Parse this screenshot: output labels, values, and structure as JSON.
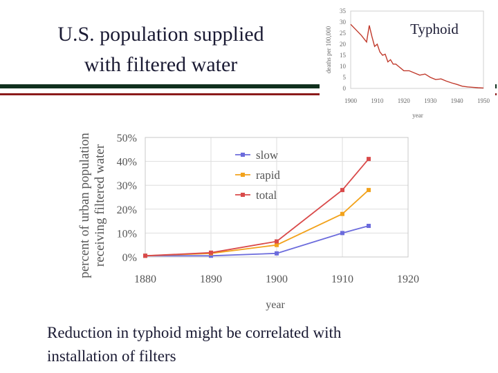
{
  "slide": {
    "title_line1": "U.S. population supplied",
    "title_line2": "with filtered water",
    "caption_line1": "Reduction in typhoid might be correlated with",
    "caption_line2": "installation of filters"
  },
  "chart_data": [
    {
      "type": "line",
      "title": "",
      "xlabel": "year",
      "ylabel_line1": "percent of urban population",
      "ylabel_line2": "receiving filtered water",
      "x_ticks": [
        "1880",
        "1890",
        "1900",
        "1910",
        "1920"
      ],
      "y_ticks": [
        "0%",
        "10%",
        "20%",
        "30%",
        "40%",
        "50%"
      ],
      "xlim": [
        1880,
        1920
      ],
      "ylim": [
        0,
        50
      ],
      "legend_position": "top-left",
      "series": [
        {
          "name": "slow",
          "color": "#6b6bdc",
          "x": [
            1880,
            1890,
            1900,
            1910,
            1914
          ],
          "values": [
            0.5,
            0.5,
            1.5,
            10,
            13
          ]
        },
        {
          "name": "rapid",
          "color": "#f2a21b",
          "x": [
            1880,
            1890,
            1900,
            1910,
            1914
          ],
          "values": [
            0.5,
            1.5,
            5,
            18,
            28
          ]
        },
        {
          "name": "total",
          "color": "#d94a4a",
          "x": [
            1880,
            1890,
            1900,
            1910,
            1914
          ],
          "values": [
            0.5,
            1.8,
            6.5,
            28,
            41
          ]
        }
      ]
    },
    {
      "type": "line",
      "title": "Typhoid",
      "xlabel": "year",
      "ylabel": "deaths per 100,000",
      "x_ticks": [
        "1900",
        "1910",
        "1920",
        "1930",
        "1940",
        "1950"
      ],
      "y_ticks": [
        "0",
        "5",
        "10",
        "15",
        "20",
        "25",
        "30",
        "35"
      ],
      "xlim": [
        1900,
        1950
      ],
      "ylim": [
        0,
        35
      ],
      "series": [
        {
          "color": "#c0392b",
          "x": [
            1900,
            1902,
            1904,
            1906,
            1907,
            1908,
            1909,
            1910,
            1911,
            1912,
            1913,
            1914,
            1915,
            1916,
            1917,
            1918,
            1919,
            1920,
            1922,
            1924,
            1926,
            1928,
            1930,
            1932,
            1934,
            1936,
            1938,
            1940,
            1942,
            1944,
            1946,
            1948,
            1950
          ],
          "values": [
            29,
            26.5,
            24,
            21,
            28.5,
            23.5,
            19,
            20,
            16.5,
            15,
            15.5,
            12,
            13,
            11,
            11,
            10,
            9,
            8,
            8,
            7,
            6,
            6.5,
            5,
            4,
            4.3,
            3.3,
            2.5,
            1.8,
            1,
            0.7,
            0.5,
            0.3,
            0.2
          ]
        }
      ]
    }
  ]
}
